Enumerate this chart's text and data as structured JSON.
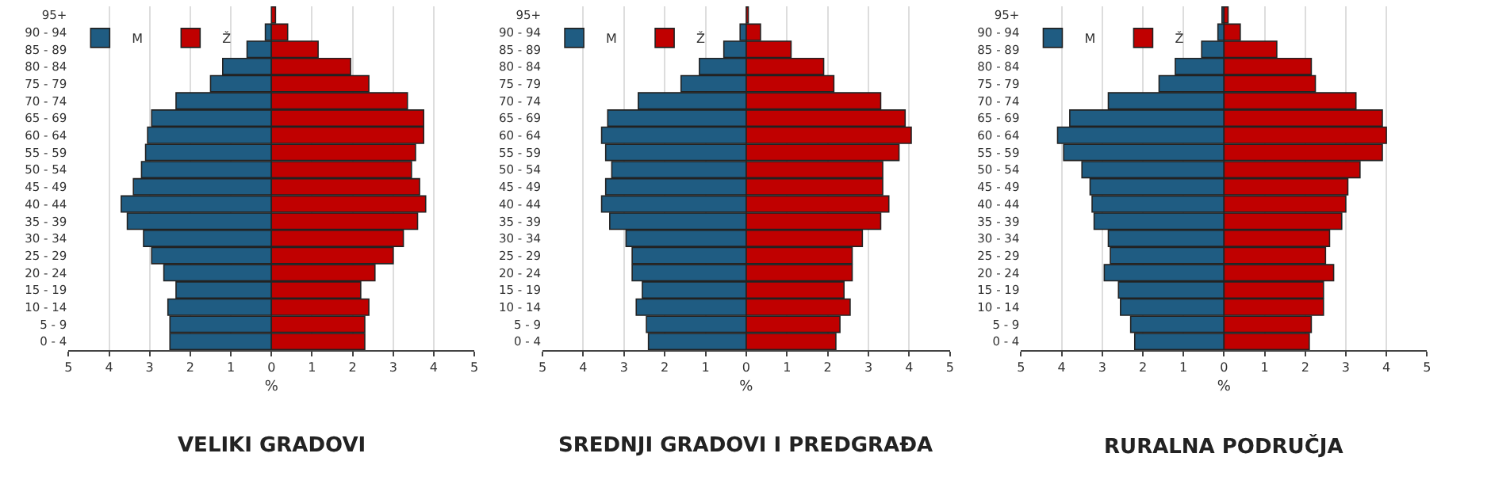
{
  "chart_data": [
    {
      "type": "bar",
      "orientation": "horizontal",
      "stacked": true,
      "title": "VELIKI GRADOVI",
      "xlabel": "%",
      "categories": [
        "95+",
        "90 - 94",
        "85 - 89",
        "80 - 84",
        "75 - 79",
        "70 - 74",
        "65 - 69",
        "60 - 64",
        "55 - 59",
        "50 - 54",
        "45 - 49",
        "40 - 44",
        "35 - 39",
        "30 - 34",
        "25 - 29",
        "20 - 24",
        "15 - 19",
        "10 - 14",
        "5 - 9",
        "0 - 4"
      ],
      "series": [
        {
          "name": "M",
          "color": "#1f5c82",
          "values": [
            null,
            -0.15,
            -0.6,
            -1.2,
            -1.5,
            -2.35,
            -2.95,
            -3.05,
            -3.1,
            -3.2,
            -3.4,
            -3.7,
            -3.55,
            -3.15,
            -2.95,
            -2.65,
            -2.35,
            -2.55,
            -2.5,
            -2.5
          ]
        },
        {
          "name": "Ž",
          "color": "#c00000",
          "values": [
            0.1,
            0.4,
            1.15,
            1.95,
            2.4,
            3.35,
            3.75,
            3.75,
            3.55,
            3.45,
            3.65,
            3.8,
            3.6,
            3.25,
            3.0,
            2.55,
            2.2,
            2.4,
            2.3,
            2.3
          ]
        }
      ],
      "xlim": [
        -5,
        5
      ],
      "xticks": [
        {
          "value": -5,
          "label": "5"
        },
        {
          "value": -4,
          "label": "4"
        },
        {
          "value": -3,
          "label": "3"
        },
        {
          "value": -2,
          "label": "2"
        },
        {
          "value": -1,
          "label": "1"
        },
        0,
        1,
        2,
        3,
        4,
        5
      ],
      "grid": "x",
      "legend": "top left"
    },
    {
      "type": "bar",
      "orientation": "horizontal",
      "stacked": true,
      "title": "SREDNJI GRADOVI I PREDGRAĐA",
      "xlabel": "%",
      "categories": [
        "95+",
        "90 - 94",
        "85 - 89",
        "80 - 84",
        "75 - 79",
        "70 - 74",
        "65 - 69",
        "60 - 64",
        "55 - 59",
        "50 - 54",
        "45 - 49",
        "40 - 44",
        "35 - 39",
        "30 - 34",
        "25 - 29",
        "20 - 24",
        "15 - 19",
        "10 - 14",
        "5 - 9",
        "0 - 4"
      ],
      "series": [
        {
          "name": "M",
          "color": "#1f5c82",
          "values": [
            null,
            -0.15,
            -0.55,
            -1.15,
            -1.6,
            -2.65,
            -3.4,
            -3.55,
            -3.45,
            -3.3,
            -3.45,
            -3.55,
            -3.35,
            -2.95,
            -2.8,
            -2.8,
            -2.55,
            -2.7,
            -2.45,
            -2.4
          ]
        },
        {
          "name": "Ž",
          "color": "#c00000",
          "values": [
            0.05,
            0.35,
            1.1,
            1.9,
            2.15,
            3.3,
            3.9,
            4.05,
            3.75,
            3.35,
            3.35,
            3.5,
            3.3,
            2.85,
            2.6,
            2.6,
            2.4,
            2.55,
            2.3,
            2.2
          ]
        }
      ],
      "xlim": [
        -5,
        5
      ],
      "xticks": [
        {
          "value": -5,
          "label": "5"
        },
        {
          "value": -4,
          "label": "4"
        },
        {
          "value": -3,
          "label": "3"
        },
        {
          "value": -2,
          "label": "2"
        },
        {
          "value": -1,
          "label": "1"
        },
        0,
        1,
        2,
        3,
        4,
        5
      ],
      "grid": "x",
      "legend": "top left"
    },
    {
      "type": "bar",
      "orientation": "horizontal",
      "stacked": true,
      "title": "RURALNA PODRUČJA",
      "xlabel": "%",
      "categories": [
        "95+",
        "90 - 94",
        "85 - 89",
        "80 - 84",
        "75 - 79",
        "70 - 74",
        "65 - 69",
        "60 - 64",
        "55 - 59",
        "50 - 54",
        "45 - 49",
        "40 - 44",
        "35 - 39",
        "30 - 34",
        "25 - 29",
        "20 - 24",
        "15 - 19",
        "10 - 14",
        "5 - 9",
        "0 - 4"
      ],
      "series": [
        {
          "name": "M",
          "color": "#1f5c82",
          "values": [
            -0.05,
            -0.15,
            -0.55,
            -1.2,
            -1.6,
            -2.85,
            -3.8,
            -4.1,
            -3.95,
            -3.5,
            -3.3,
            -3.25,
            -3.2,
            -2.85,
            -2.8,
            -2.95,
            -2.6,
            -2.55,
            -2.3,
            -2.2
          ]
        },
        {
          "name": "Ž",
          "color": "#c00000",
          "values": [
            0.1,
            0.4,
            1.3,
            2.15,
            2.25,
            3.25,
            3.9,
            4.0,
            3.9,
            3.35,
            3.05,
            3.0,
            2.9,
            2.6,
            2.5,
            2.7,
            2.45,
            2.45,
            2.15,
            2.1
          ]
        }
      ],
      "xlim": [
        -5,
        5
      ],
      "xticks": [
        {
          "value": -5,
          "label": "5"
        },
        {
          "value": -4,
          "label": "4"
        },
        {
          "value": -3,
          "label": "3"
        },
        {
          "value": -2,
          "label": "2"
        },
        {
          "value": -1,
          "label": "1"
        },
        0,
        1,
        2,
        3,
        4,
        5
      ],
      "grid": "x",
      "legend": "top left"
    }
  ]
}
